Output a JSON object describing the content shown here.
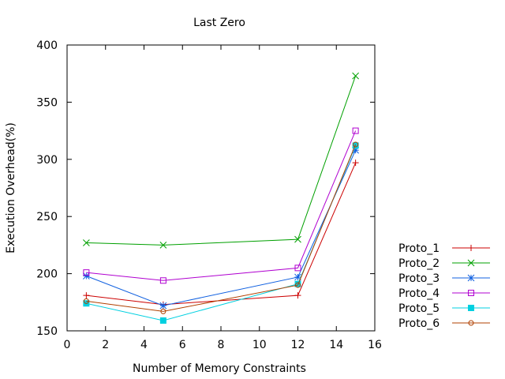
{
  "chart_data": {
    "type": "line",
    "title": "Last Zero",
    "xlabel": "Number of Memory Constraints",
    "ylabel": "Execution Overhead(%)",
    "xlim": [
      0,
      16
    ],
    "ylim": [
      150,
      400
    ],
    "xticks": [
      0,
      2,
      4,
      6,
      8,
      10,
      12,
      14,
      16
    ],
    "yticks": [
      150,
      200,
      250,
      300,
      350,
      400
    ],
    "grid": false,
    "legend_position": "outside-bottom-right",
    "x": [
      1,
      5,
      12,
      15
    ],
    "series": [
      {
        "name": "Proto_1",
        "color": "#cc0000",
        "marker": "plus",
        "values": [
          181,
          173,
          181,
          297
        ]
      },
      {
        "name": "Proto_2",
        "color": "#00a000",
        "marker": "cross",
        "values": [
          227,
          225,
          230,
          373
        ]
      },
      {
        "name": "Proto_3",
        "color": "#1060e0",
        "marker": "star",
        "values": [
          198,
          172,
          197,
          308
        ]
      },
      {
        "name": "Proto_4",
        "color": "#b000d0",
        "marker": "square-open",
        "values": [
          201,
          194,
          205,
          325
        ]
      },
      {
        "name": "Proto_5",
        "color": "#00d0e0",
        "marker": "square-filled",
        "values": [
          174,
          159,
          191,
          312
        ]
      },
      {
        "name": "Proto_6",
        "color": "#b04000",
        "marker": "circle-open",
        "values": [
          176,
          167,
          190,
          313
        ]
      }
    ]
  }
}
